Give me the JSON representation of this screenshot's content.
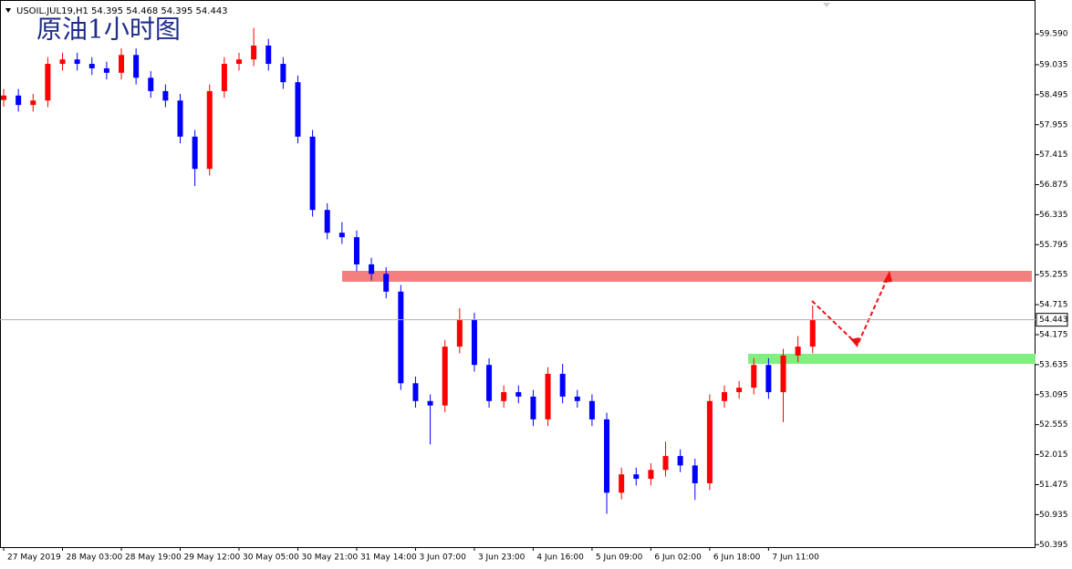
{
  "chart_data": {
    "type": "candlestick",
    "title": "USOIL.JUL19,H1  54.395 54.468 54.395 54.443",
    "annotation": "原油1小时图",
    "x": [
      0,
      4,
      8,
      12,
      16,
      20,
      24,
      28,
      32,
      36,
      40,
      44,
      48,
      52,
      56,
      60,
      64,
      68,
      72,
      76,
      80,
      84,
      88,
      92,
      96,
      100,
      104,
      108,
      112,
      116,
      120,
      124,
      128,
      132,
      136,
      140,
      144,
      148,
      152,
      156,
      160,
      164,
      168,
      172,
      176,
      180,
      184,
      188,
      192,
      196,
      200,
      204,
      208,
      212,
      216,
      220
    ],
    "open": [
      58.4,
      58.48,
      58.31,
      58.39,
      59.05,
      59.13,
      59.05,
      58.97,
      58.89,
      59.21,
      58.8,
      58.56,
      58.39,
      57.74,
      57.16,
      58.56,
      59.05,
      59.13,
      59.38,
      59.05,
      58.72,
      57.74,
      56.42,
      56.01,
      55.93,
      55.44,
      55.27,
      54.95,
      53.3,
      52.98,
      52.9,
      53.96,
      54.45,
      53.63,
      52.98,
      53.14,
      53.06,
      52.65,
      53.47,
      53.06,
      52.98,
      52.65,
      51.33,
      51.66,
      51.58,
      51.74,
      51.99,
      51.82,
      51.5,
      52.98,
      53.14,
      53.22,
      53.63,
      53.14,
      53.8,
      53.96
    ],
    "high": [
      58.6,
      58.6,
      58.51,
      59.17,
      59.25,
      59.25,
      59.17,
      59.09,
      59.33,
      59.33,
      58.92,
      58.68,
      58.51,
      57.86,
      58.68,
      59.17,
      59.25,
      59.7,
      59.5,
      59.17,
      58.84,
      57.86,
      56.54,
      56.2,
      56.05,
      55.56,
      55.39,
      55.07,
      53.42,
      53.1,
      54.08,
      54.65,
      54.57,
      53.75,
      53.26,
      53.26,
      53.18,
      53.59,
      53.65,
      53.18,
      53.1,
      52.77,
      51.78,
      51.78,
      51.86,
      52.25,
      52.11,
      51.94,
      53.1,
      53.26,
      53.34,
      53.75,
      53.75,
      53.92,
      54.15,
      54.7
    ],
    "low": [
      58.28,
      58.19,
      58.19,
      58.27,
      58.93,
      58.93,
      58.85,
      58.77,
      58.77,
      58.68,
      58.44,
      58.27,
      57.62,
      56.85,
      57.04,
      58.44,
      58.93,
      59.01,
      58.93,
      58.6,
      57.62,
      56.3,
      55.89,
      55.81,
      55.32,
      55.15,
      54.83,
      53.18,
      52.86,
      52.2,
      52.78,
      53.84,
      53.51,
      52.86,
      52.86,
      52.94,
      52.53,
      52.53,
      52.94,
      52.86,
      52.53,
      50.95,
      51.21,
      51.46,
      51.46,
      51.62,
      51.7,
      51.2,
      51.38,
      52.86,
      53.02,
      53.1,
      53.02,
      52.6,
      53.68,
      53.84
    ],
    "close": [
      58.48,
      58.31,
      58.39,
      59.05,
      59.13,
      59.05,
      58.97,
      58.89,
      59.21,
      58.8,
      58.56,
      58.39,
      57.74,
      57.16,
      58.56,
      59.05,
      59.13,
      59.38,
      59.05,
      58.72,
      57.74,
      56.42,
      56.01,
      55.93,
      55.44,
      55.27,
      54.95,
      53.3,
      52.98,
      52.9,
      53.96,
      54.45,
      53.63,
      52.98,
      53.14,
      53.06,
      52.65,
      53.47,
      53.06,
      52.98,
      52.65,
      51.33,
      51.66,
      51.58,
      51.74,
      51.99,
      51.82,
      51.5,
      52.98,
      53.14,
      53.22,
      53.63,
      53.14,
      53.8,
      53.96,
      54.44
    ],
    "xlim": [
      -1,
      280.6
    ],
    "xticks": [
      {
        "value": 0,
        "label": "27 May 2019"
      },
      {
        "value": 16,
        "label": "28 May 03:00"
      },
      {
        "value": 32,
        "label": "28 May 19:00"
      },
      {
        "value": 48,
        "label": "29 May 12:00"
      },
      {
        "value": 64,
        "label": "30 May 05:00"
      },
      {
        "value": 80,
        "label": "30 May 21:00"
      },
      {
        "value": 96,
        "label": "31 May 14:00"
      },
      {
        "value": 112,
        "label": "3 Jun 07:00"
      },
      {
        "value": 128,
        "label": "3 Jun 23:00"
      },
      {
        "value": 144,
        "label": "4 Jun 16:00"
      },
      {
        "value": 160,
        "label": "5 Jun 09:00"
      },
      {
        "value": 176,
        "label": "6 Jun 02:00"
      },
      {
        "value": 192,
        "label": "6 Jun 18:00"
      },
      {
        "value": 208,
        "label": "7 Jun 11:00"
      }
    ],
    "ylim": [
      50.35,
      60.2
    ],
    "yticks": [
      {
        "value": 59.59,
        "label": "59.590"
      },
      59.035,
      58.495,
      57.955,
      57.415,
      56.875,
      56.335,
      55.795,
      55.255,
      54.715,
      54.175,
      53.635,
      53.095,
      52.555,
      52.015,
      51.475,
      50.935,
      50.395
    ],
    "current_price": 54.443,
    "up_color": "#ff0000",
    "down_color": "#0000ff"
  }
}
